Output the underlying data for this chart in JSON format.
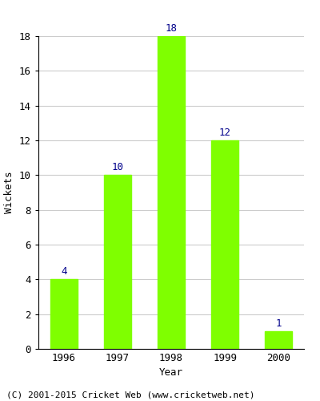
{
  "years": [
    "1996",
    "1997",
    "1998",
    "1999",
    "2000"
  ],
  "wickets": [
    4,
    10,
    18,
    12,
    1
  ],
  "bar_color": "#7FFF00",
  "bar_edgecolor": "#7FFF00",
  "annotation_color": "#00008B",
  "ylabel": "Wickets",
  "xlabel": "Year",
  "ylim": [
    0,
    18
  ],
  "yticks": [
    0,
    2,
    4,
    6,
    8,
    10,
    12,
    14,
    16,
    18
  ],
  "grid_color": "#cccccc",
  "background_color": "#ffffff",
  "annotation_fontsize": 9,
  "axis_label_fontsize": 9,
  "tick_fontsize": 9,
  "footer_text": "(C) 2001-2015 Cricket Web (www.cricketweb.net)",
  "footer_fontsize": 8,
  "bar_width": 0.5
}
